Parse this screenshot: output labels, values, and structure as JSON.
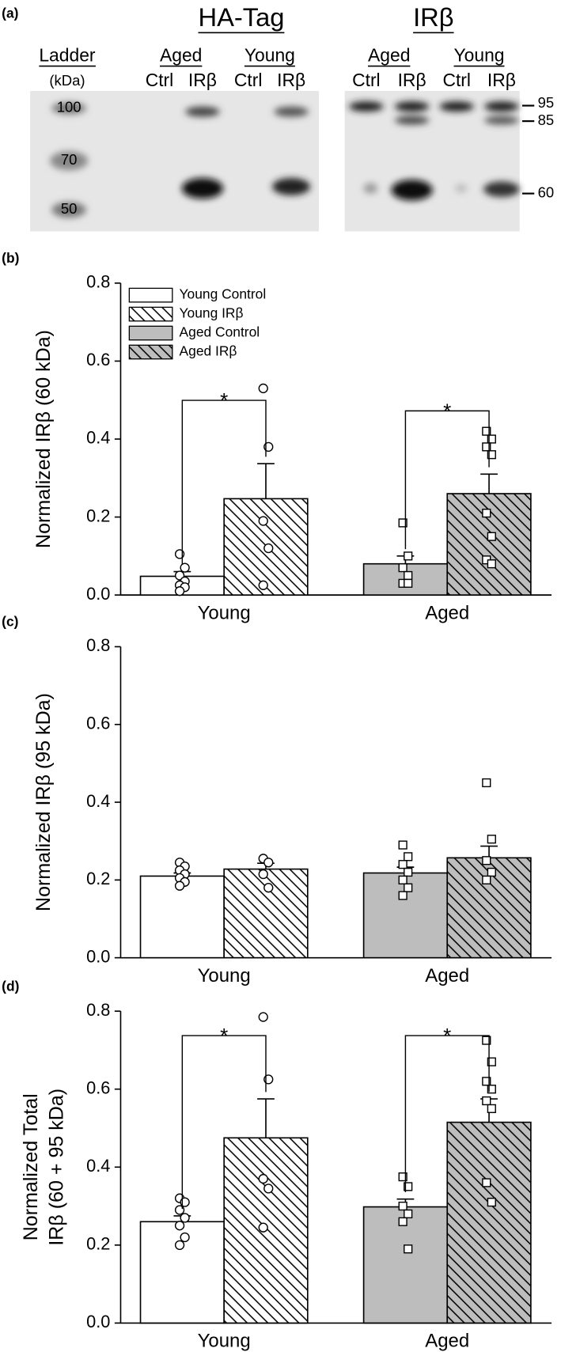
{
  "blot": {
    "label": "(a)",
    "left": {
      "title": "HA-Tag",
      "ladder": "Ladder",
      "ladder_unit": "(kDa)",
      "ladder_marks": [
        "100",
        "70",
        "50"
      ],
      "groups": [
        {
          "name": "Aged",
          "lanes": [
            "Ctrl",
            "IRβ"
          ]
        },
        {
          "name": "Young",
          "lanes": [
            "Ctrl",
            "IRβ"
          ]
        }
      ]
    },
    "right": {
      "title": "IRβ",
      "size_marks": [
        "95",
        "85",
        "60"
      ],
      "groups": [
        {
          "name": "Aged",
          "lanes": [
            "Ctrl",
            "IRβ"
          ]
        },
        {
          "name": "Young",
          "lanes": [
            "Ctrl",
            "IRβ"
          ]
        }
      ]
    }
  },
  "chart_data": [
    {
      "type": "bar",
      "panel": "(b)",
      "ylabel": [
        "Normalized IRβ (60 kDa)"
      ],
      "categories": [
        "Young",
        "Aged"
      ],
      "ylim": [
        0,
        0.8
      ],
      "yticks": [
        {
          "value": 0,
          "label": "0.0"
        },
        0.2,
        0.4,
        0.6,
        0.8
      ],
      "legend": "upper left",
      "series": [
        {
          "name": "Young Control",
          "color": "#ffffff",
          "hatch": false,
          "marker": "circle",
          "values": [
            0.048,
            null
          ],
          "errors": [
            0.012,
            null
          ],
          "points": [
            [
              0.105,
              0.07,
              0.05,
              0.035,
              0.025,
              0.02,
              0.01
            ],
            null
          ]
        },
        {
          "name": "Young IRβ",
          "color": "#ffffff",
          "hatch": true,
          "marker": "circle",
          "values": [
            0.247,
            null
          ],
          "errors": [
            0.09,
            null
          ],
          "points": [
            [
              0.53,
              0.38,
              0.19,
              0.12,
              0.025
            ],
            null
          ]
        },
        {
          "name": "Aged Control",
          "color": "#bdbdbd",
          "hatch": false,
          "marker": "square",
          "values": [
            null,
            0.08
          ],
          "errors": [
            null,
            0.02
          ],
          "points": [
            null,
            [
              0.185,
              0.1,
              0.07,
              0.05,
              0.03,
              0.03
            ]
          ]
        },
        {
          "name": "Aged IRβ",
          "color": "#bdbdbd",
          "hatch": true,
          "marker": "square",
          "values": [
            null,
            0.26
          ],
          "errors": [
            null,
            0.05
          ],
          "points": [
            null,
            [
              0.42,
              0.4,
              0.38,
              0.36,
              0.21,
              0.15,
              0.09,
              0.08
            ]
          ]
        }
      ],
      "significance": [
        {
          "label": "*",
          "series": [
            0,
            1
          ],
          "category": 0
        },
        {
          "label": "*",
          "series": [
            2,
            3
          ],
          "category": 1
        }
      ]
    },
    {
      "type": "bar",
      "panel": "(c)",
      "ylabel": [
        "Normalized IRβ (95 kDa)"
      ],
      "categories": [
        "Young",
        "Aged"
      ],
      "ylim": [
        0,
        0.8
      ],
      "yticks": [
        {
          "value": 0,
          "label": "0.0"
        },
        0.2,
        0.4,
        0.6,
        0.8
      ],
      "series": [
        {
          "color": "#ffffff",
          "hatch": false,
          "marker": "circle",
          "values": [
            0.21,
            null
          ],
          "errors": [
            0.008,
            null
          ],
          "points": [
            [
              0.245,
              0.235,
              0.225,
              0.215,
              0.205,
              0.195,
              0.185
            ],
            null
          ]
        },
        {
          "color": "#ffffff",
          "hatch": true,
          "marker": "circle",
          "values": [
            0.228,
            null
          ],
          "errors": [
            0.015,
            null
          ],
          "points": [
            [
              0.255,
              0.245,
              0.215,
              0.18
            ],
            null
          ]
        },
        {
          "color": "#bdbdbd",
          "hatch": false,
          "marker": "square",
          "values": [
            null,
            0.218
          ],
          "errors": [
            null,
            0.015
          ],
          "points": [
            null,
            [
              0.29,
              0.26,
              0.24,
              0.22,
              0.2,
              0.18,
              0.16
            ]
          ]
        },
        {
          "color": "#bdbdbd",
          "hatch": true,
          "marker": "square",
          "values": [
            null,
            0.257
          ],
          "errors": [
            null,
            0.03
          ],
          "points": [
            null,
            [
              0.45,
              0.305,
              0.25,
              0.22,
              0.2
            ]
          ]
        }
      ]
    },
    {
      "type": "bar",
      "panel": "(d)",
      "ylabel": [
        "Normalized Total",
        "IRβ (60 + 95 kDa)"
      ],
      "categories": [
        "Young",
        "Aged"
      ],
      "ylim": [
        0,
        0.8
      ],
      "yticks": [
        {
          "value": 0,
          "label": "0.0"
        },
        0.2,
        0.4,
        0.6,
        0.8
      ],
      "series": [
        {
          "color": "#ffffff",
          "hatch": false,
          "marker": "circle",
          "values": [
            0.26,
            null
          ],
          "errors": [
            0.015,
            null
          ],
          "points": [
            [
              0.32,
              0.31,
              0.29,
              0.27,
              0.25,
              0.22,
              0.2
            ],
            null
          ]
        },
        {
          "color": "#ffffff",
          "hatch": true,
          "marker": "circle",
          "values": [
            0.475,
            null
          ],
          "errors": [
            0.1,
            null
          ],
          "points": [
            [
              0.785,
              0.625,
              0.37,
              0.345,
              0.245
            ],
            null
          ]
        },
        {
          "color": "#bdbdbd",
          "hatch": false,
          "marker": "square",
          "values": [
            null,
            0.298
          ],
          "errors": [
            null,
            0.02
          ],
          "points": [
            null,
            [
              0.375,
              0.35,
              0.3,
              0.28,
              0.26,
              0.19
            ]
          ]
        },
        {
          "color": "#bdbdbd",
          "hatch": true,
          "marker": "square",
          "values": [
            null,
            0.515
          ],
          "errors": [
            null,
            0.06
          ],
          "points": [
            null,
            [
              0.725,
              0.67,
              0.62,
              0.6,
              0.57,
              0.55,
              0.36,
              0.31
            ]
          ]
        }
      ],
      "significance": [
        {
          "label": "*",
          "series": [
            0,
            1
          ],
          "category": 0
        },
        {
          "label": "*",
          "series": [
            2,
            3
          ],
          "category": 1
        }
      ]
    }
  ]
}
